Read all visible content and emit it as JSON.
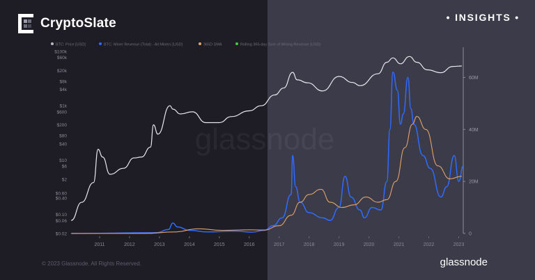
{
  "header": {
    "brand": "CryptoSlate",
    "badge": "INSIGHTS"
  },
  "footer": {
    "copyright": "© 2023 Glassnode. All Rights Reserved.",
    "brand": "glassnode"
  },
  "watermark": "glassnode",
  "colors": {
    "price": "#e8e8ee",
    "revenue": "#2e6bff",
    "sma": "#e3a46a",
    "usd": "#3ccf3c"
  },
  "chart_data": {
    "type": "line",
    "legend_position": "top-left",
    "legend": [
      {
        "label": "BTC: Price [USD]",
        "color": "#b9b8c6"
      },
      {
        "label": "BTC: Miner Revenue (Total) - All Miners [USD]",
        "color": "#2e6bff"
      },
      {
        "label": "365D SMA",
        "color": "#e3a46a"
      },
      {
        "label": "Rolling 365-day Sum of Mining Revenue (USD)",
        "color": "#3ccf3c"
      }
    ],
    "x_ticks": [
      "2011",
      "2012",
      "2013",
      "2014",
      "2015",
      "2016",
      "2017",
      "2018",
      "2019",
      "2020",
      "2021",
      "2022",
      "2023"
    ],
    "y_left_ticks": [
      "$100k",
      "$60k",
      "$20k",
      "$8k",
      "$4k",
      "$1k",
      "$600",
      "$200",
      "$80",
      "$40",
      "$10",
      "$6",
      "$2",
      "$0.60",
      "$0.40",
      "$0.10",
      "$0.06",
      "$0.02"
    ],
    "y_left_scale": "log",
    "y_right_ticks": [
      "60M",
      "40M",
      "20M",
      "0"
    ],
    "y_right_range": [
      0,
      70
    ],
    "series": [
      {
        "name": "BTC: Price [USD]",
        "axis": "left",
        "x": [
          2010.55,
          2010.9,
          2011.3,
          2011.45,
          2011.6,
          2011.85,
          2012.3,
          2012.65,
          2012.9,
          2013.2,
          2013.3,
          2013.45,
          2013.85,
          2013.95,
          2014.2,
          2014.6,
          2015.05,
          2015.5,
          2015.9,
          2016.5,
          2016.9,
          2017.35,
          2017.65,
          2017.95,
          2018.1,
          2018.45,
          2018.95,
          2019.5,
          2019.95,
          2020.2,
          2020.8,
          2021.1,
          2021.3,
          2021.55,
          2021.85,
          2022.1,
          2022.45,
          2022.9,
          2023.3,
          2023.6
        ],
        "y": [
          0.06,
          0.28,
          1.5,
          25,
          13,
          3,
          5,
          12,
          13,
          30,
          200,
          90,
          1000,
          750,
          500,
          600,
          240,
          240,
          400,
          650,
          1000,
          2500,
          4500,
          17000,
          9000,
          7000,
          3500,
          12000,
          7200,
          5500,
          15000,
          40000,
          58000,
          35000,
          65000,
          40000,
          21000,
          16500,
          28000,
          29000
        ]
      },
      {
        "name": "BTC: Miner Revenue (Total) - All Miners [USD]",
        "axis": "right",
        "x": [
          2010.55,
          2013.4,
          2013.8,
          2013.95,
          2014.1,
          2014.5,
          2015.1,
          2016.0,
          2016.6,
          2017.0,
          2017.3,
          2017.6,
          2017.9,
          2017.95,
          2018.05,
          2018.2,
          2018.5,
          2018.95,
          2019.2,
          2019.5,
          2019.7,
          2019.9,
          2020.2,
          2020.35,
          2020.6,
          2020.9,
          2021.1,
          2021.2,
          2021.3,
          2021.45,
          2021.55,
          2021.65,
          2021.8,
          2021.9,
          2022.0,
          2022.3,
          2022.55,
          2022.9,
          2023.1,
          2023.35,
          2023.5,
          2023.65
        ],
        "y": [
          0,
          0.3,
          1.5,
          4,
          2.5,
          1.2,
          0.6,
          0.9,
          0.5,
          1.2,
          3,
          6,
          15,
          30,
          18,
          12,
          8,
          6,
          5,
          10,
          22,
          14,
          9,
          6,
          10,
          9,
          20,
          40,
          62,
          55,
          42,
          46,
          60,
          48,
          42,
          30,
          25,
          14,
          18,
          30,
          20,
          26
        ]
      },
      {
        "name": "365D SMA",
        "axis": "right",
        "x": [
          2010.55,
          2013.0,
          2014.0,
          2014.8,
          2015.6,
          2016.5,
          2017.0,
          2017.5,
          2017.9,
          2018.2,
          2018.5,
          2018.9,
          2019.2,
          2019.6,
          2020.0,
          2020.4,
          2020.8,
          2021.1,
          2021.4,
          2021.7,
          2021.95,
          2022.1,
          2022.4,
          2022.8,
          2023.2,
          2023.6
        ],
        "y": [
          0,
          0,
          0.6,
          1.8,
          1.2,
          1.4,
          1.3,
          3,
          7,
          12,
          15,
          17,
          12,
          10,
          11,
          14,
          12,
          13,
          20,
          33,
          42,
          45,
          40,
          26,
          21,
          22
        ]
      }
    ]
  }
}
